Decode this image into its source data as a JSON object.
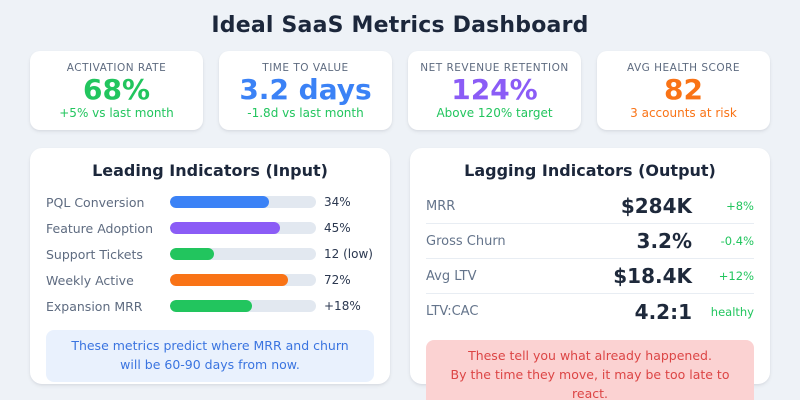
{
  "title": "Ideal SaaS Metrics Dashboard",
  "colors": {
    "background": "#eef2f7",
    "card": "#ffffff",
    "dark_text": "#1e293b",
    "muted_text": "#64748b",
    "green": "#22c55e",
    "blue": "#3b82f6",
    "purple": "#8b5cf6",
    "orange": "#f97316",
    "bar_track": "#e2e8f0",
    "note_blue_bg": "#e9f1fd",
    "note_blue_text": "#3a74e0",
    "note_red_bg": "#fbd2d2",
    "note_red_text": "#dc4545"
  },
  "kpis": [
    {
      "label": "ACTIVATION RATE",
      "value": "68%",
      "value_color": "#22c55e",
      "sub": "+5% vs last month",
      "sub_color": "#22c55e"
    },
    {
      "label": "TIME TO VALUE",
      "value": "3.2 days",
      "value_color": "#3b82f6",
      "sub": "-1.8d vs last month",
      "sub_color": "#22c55e"
    },
    {
      "label": "NET REVENUE RETENTION",
      "value": "124%",
      "value_color": "#8b5cf6",
      "sub": "Above 120% target",
      "sub_color": "#22c55e"
    },
    {
      "label": "AVG HEALTH SCORE",
      "value": "82",
      "value_color": "#f97316",
      "sub": "3 accounts at risk",
      "sub_color": "#f97316"
    }
  ],
  "leading": {
    "title": "Leading Indicators (Input)",
    "rows": [
      {
        "label": "PQL Conversion",
        "value": "34%",
        "bar_pct": 68,
        "bar_color": "#3b82f6"
      },
      {
        "label": "Feature Adoption",
        "value": "45%",
        "bar_pct": 75,
        "bar_color": "#8b5cf6"
      },
      {
        "label": "Support Tickets",
        "value": "12 (low)",
        "bar_pct": 30,
        "bar_color": "#22c55e"
      },
      {
        "label": "Weekly Active",
        "value": "72%",
        "bar_pct": 81,
        "bar_color": "#f97316"
      },
      {
        "label": "Expansion MRR",
        "value": "+18%",
        "bar_pct": 56,
        "bar_color": "#22c55e"
      }
    ],
    "note": "These metrics predict where MRR and churn\nwill be 60-90 days from now."
  },
  "lagging": {
    "title": "Lagging Indicators (Output)",
    "rows": [
      {
        "label": "MRR",
        "value": "$284K",
        "delta": "+8%",
        "delta_color": "#22c55e"
      },
      {
        "label": "Gross Churn",
        "value": "3.2%",
        "delta": "-0.4%",
        "delta_color": "#22c55e"
      },
      {
        "label": "Avg LTV",
        "value": "$18.4K",
        "delta": "+12%",
        "delta_color": "#22c55e"
      },
      {
        "label": "LTV:CAC",
        "value": "4.2:1",
        "delta": "healthy",
        "delta_color": "#22c55e"
      }
    ],
    "warning": "These tell you what already happened.\nBy the time they move, it may be too late to react."
  },
  "chart_data": {
    "type": "bar",
    "orientation": "horizontal",
    "title": "Leading Indicators (Input)",
    "categories": [
      "PQL Conversion",
      "Feature Adoption",
      "Support Tickets",
      "Weekly Active",
      "Expansion MRR"
    ],
    "value_labels": [
      "34%",
      "45%",
      "12 (low)",
      "72%",
      "+18%"
    ],
    "bar_fill_percent": [
      68,
      75,
      30,
      81,
      56
    ],
    "bar_colors": [
      "#3b82f6",
      "#8b5cf6",
      "#22c55e",
      "#f97316",
      "#22c55e"
    ],
    "legend_position": "none",
    "grid": false
  }
}
